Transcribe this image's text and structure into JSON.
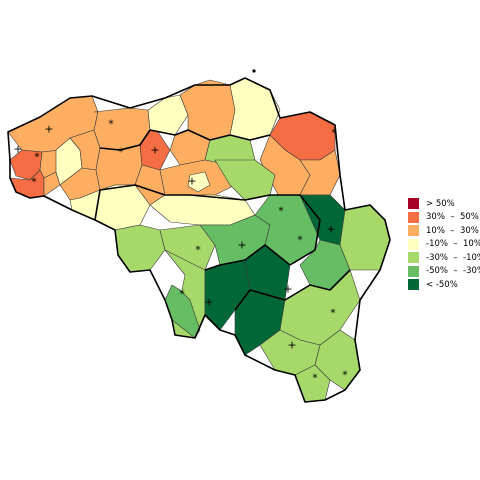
{
  "legend": {
    "items": [
      {
        "label": "> 50%",
        "color": "#a50026"
      },
      {
        "label": "30%  –  50%",
        "color": "#f46d43"
      },
      {
        "label": "10%  –  30%",
        "color": "#fdae61"
      },
      {
        "label": "-10%  –  10%",
        "color": "#ffffbf"
      },
      {
        "label": "-30%  –  -10%",
        "color": "#a6d96a"
      },
      {
        "label": "-50%  –  -30%",
        "color": "#66bd63"
      },
      {
        "label": "< -50%",
        "color": "#006837"
      }
    ]
  },
  "markers": {
    "plus": "+",
    "star": "*"
  }
}
